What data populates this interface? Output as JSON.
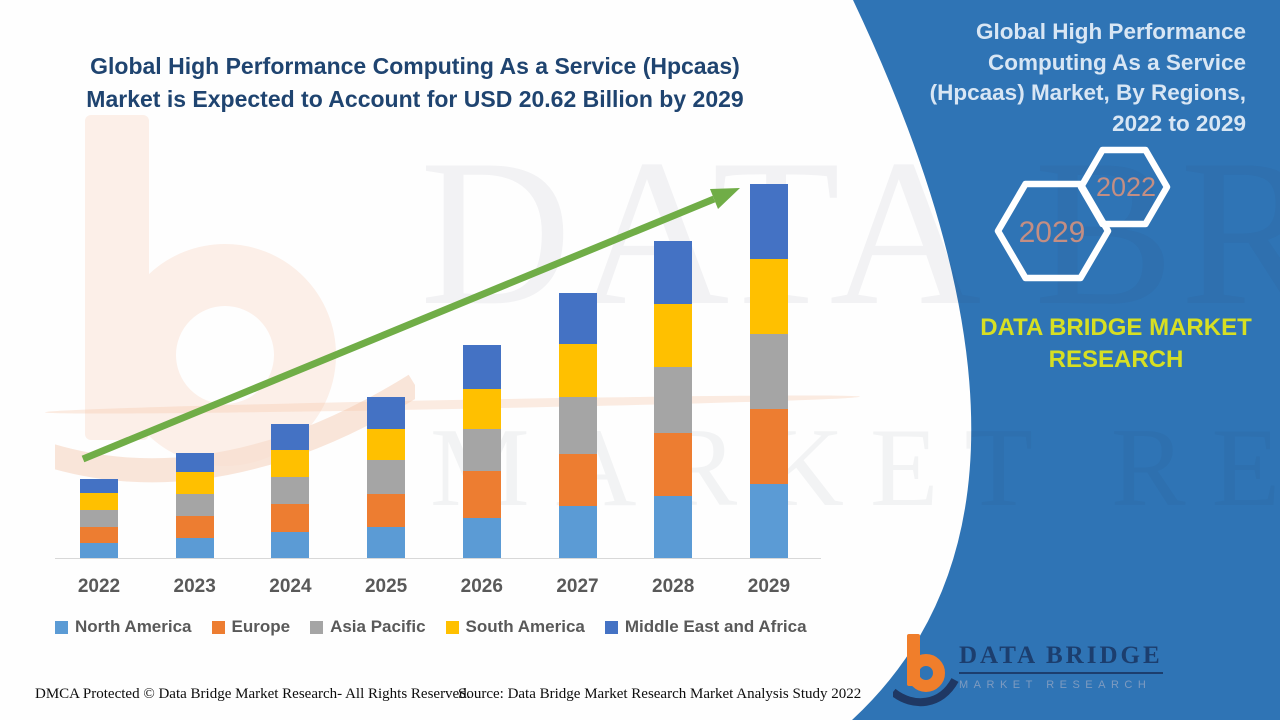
{
  "header": {
    "title_lines": [
      "Global High Performance Computing As a Service (Hpcaas)",
      "Market is Expected to Account for USD 20.62 Billion by 2029"
    ]
  },
  "panel": {
    "title": "Global High Performance Computing As a Service (Hpcaas) Market, By Regions, 2022 to 2029",
    "background_color": "#2F74B5",
    "title_color": "#D8E6F4",
    "hexagons": [
      {
        "label": "2029"
      },
      {
        "label": "2022"
      }
    ],
    "hexagon_year_color": "#C48E83",
    "brand_text": "DATA BRIDGE MARKET RESEARCH",
    "brand_text_color": "#D7DF23"
  },
  "logo": {
    "name_line": "DATA BRIDGE",
    "sub_line": "MARKET RESEARCH",
    "mark_orange": "#F07E2B",
    "mark_navy": "#1F3864"
  },
  "watermark": {
    "line1": "DATA BRIDGE",
    "line2": "MARKET RESEARCH"
  },
  "footer": {
    "dmca": "DMCA Protected © Data Bridge Market Research- All Rights Reserved.",
    "source": "Source: Data Bridge Market Research Market Analysis Study 2022"
  },
  "chart_data": {
    "type": "bar",
    "stacked": true,
    "title": "Global High Performance Computing As a Service (Hpcaas) Market is Expected to Account for USD 20.62 Billion by 2029",
    "unit": "USD Billion",
    "categories": [
      "2022",
      "2023",
      "2024",
      "2025",
      "2026",
      "2027",
      "2028",
      "2029"
    ],
    "series": [
      {
        "name": "North America",
        "color": "#5B9BD5",
        "values": [
          0.83,
          1.1,
          1.43,
          1.71,
          2.21,
          2.87,
          3.42,
          4.08
        ]
      },
      {
        "name": "Europe",
        "color": "#ED7D31",
        "values": [
          0.88,
          1.21,
          1.54,
          1.82,
          2.59,
          2.87,
          3.47,
          4.13
        ]
      },
      {
        "name": "Asia Pacific",
        "color": "#A5A5A5",
        "values": [
          0.94,
          1.21,
          1.49,
          1.87,
          2.32,
          3.14,
          3.64,
          4.13
        ]
      },
      {
        "name": "South America",
        "color": "#FFC000",
        "values": [
          0.94,
          1.21,
          1.49,
          1.71,
          2.21,
          2.92,
          3.47,
          4.13
        ]
      },
      {
        "name": "Middle East and Africa",
        "color": "#4472C4",
        "values": [
          0.77,
          1.05,
          1.43,
          1.76,
          2.43,
          2.81,
          3.47,
          4.15
        ]
      }
    ],
    "totals_estimated": [
      4.36,
      5.78,
      7.38,
      8.87,
      11.76,
      14.61,
      17.47,
      20.62
    ],
    "ylim": [
      0,
      20.62
    ],
    "grid": false,
    "legend_position": "bottom",
    "trend_arrow": true,
    "trend_arrow_color": "#70AD47",
    "axis_label_color": "#595959"
  }
}
